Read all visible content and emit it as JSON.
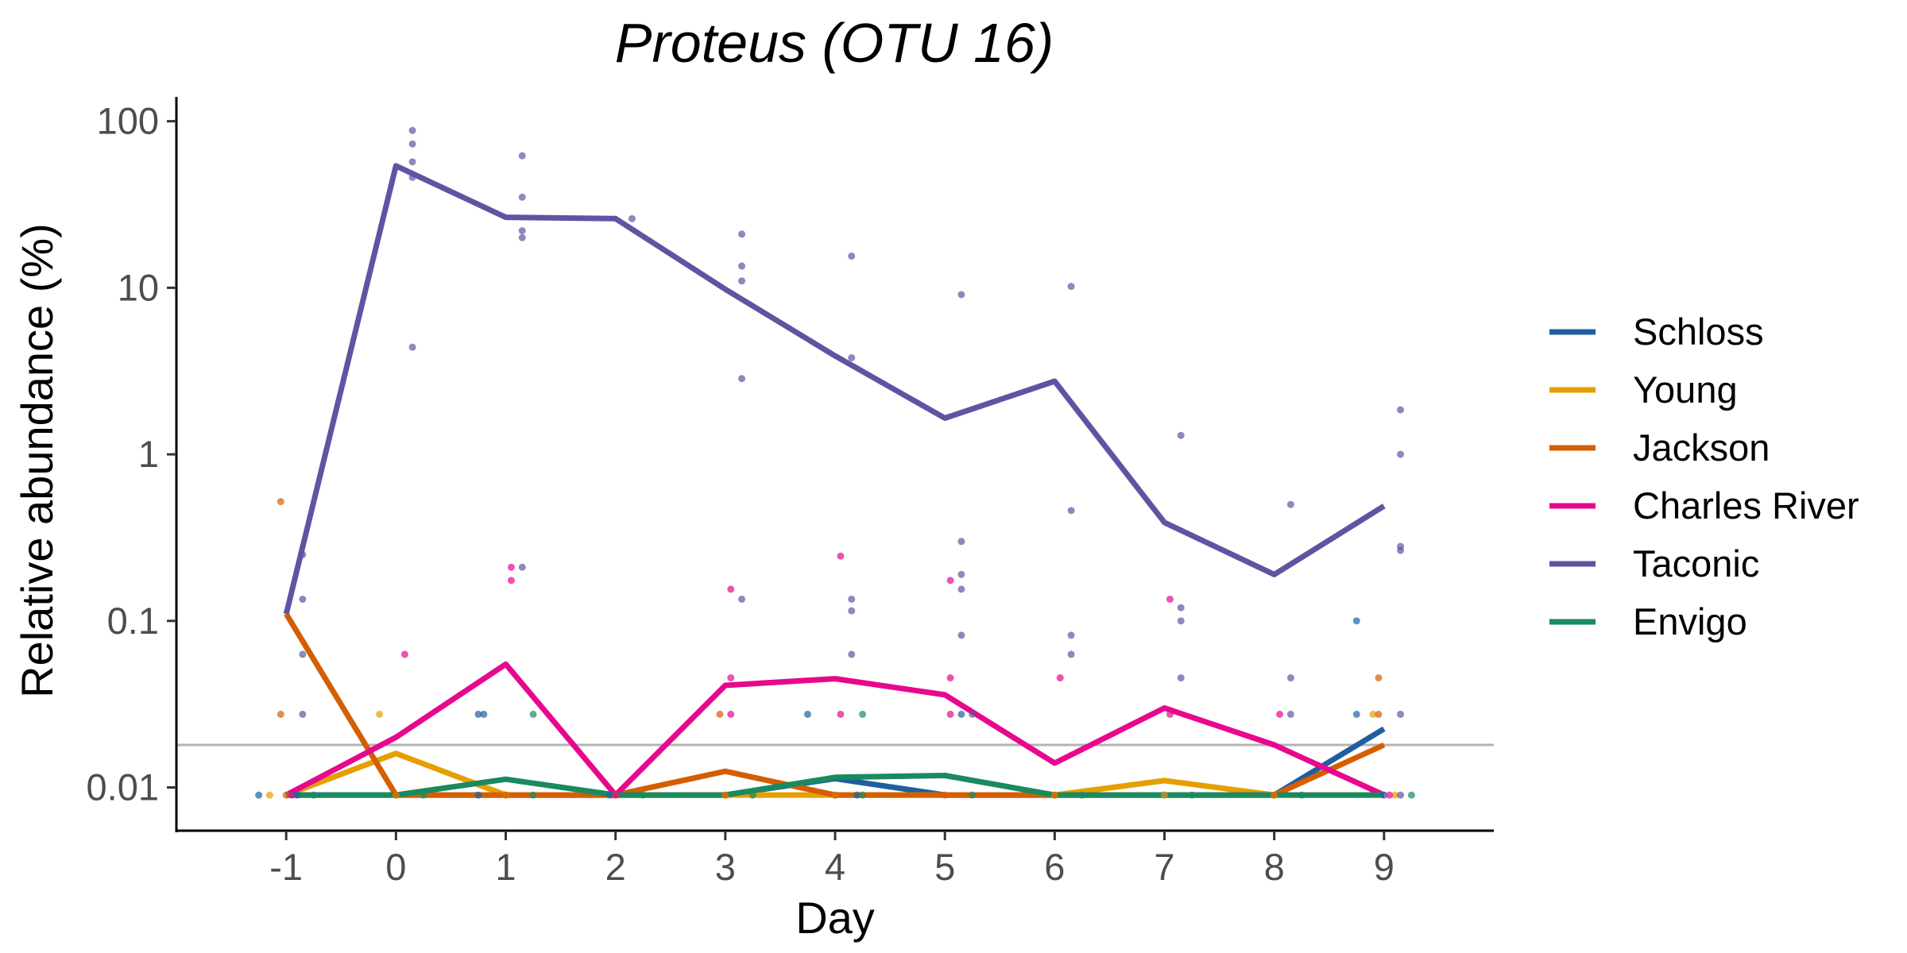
{
  "chart_data": {
    "type": "line",
    "title": "Proteus (OTU 16)",
    "xlabel": "Day",
    "ylabel": "Relative abundance (%)",
    "x": [
      -1,
      0,
      1,
      2,
      3,
      4,
      5,
      6,
      7,
      8,
      9
    ],
    "x_ticks": [
      "-1",
      "0",
      "1",
      "2",
      "3",
      "4",
      "5",
      "6",
      "7",
      "8",
      "9"
    ],
    "xlim": [
      -2,
      10
    ],
    "y_scale": "log",
    "y_ticks": [
      {
        "value": 0.01,
        "label": "0.01"
      },
      {
        "value": 0.1,
        "label": "0.1"
      },
      {
        "value": 1,
        "label": "1"
      },
      {
        "value": 10,
        "label": "10"
      },
      {
        "value": 100,
        "label": "100"
      }
    ],
    "ylim": [
      0.0055,
      140
    ],
    "limit_of_detection": 0.018,
    "grid": false,
    "legend_position": "right",
    "series": [
      {
        "name": "Schloss",
        "color": "#1f5fa0",
        "values": [
          0.009,
          0.009,
          0.009,
          0.009,
          0.009,
          0.0113,
          0.009,
          0.009,
          0.009,
          0.009,
          0.0225
        ],
        "points": [
          [
            -1.25,
            0.009
          ],
          [
            -0.9,
            0.009
          ],
          [
            0.75,
            0.009
          ],
          [
            0.75,
            0.0275
          ],
          [
            0.8,
            0.0275
          ],
          [
            1.95,
            0.009
          ],
          [
            3.75,
            0.0275
          ],
          [
            4.2,
            0.009
          ],
          [
            5.15,
            0.0275
          ],
          [
            7.0,
            0.009
          ],
          [
            8.75,
            0.1
          ],
          [
            8.75,
            0.0275
          ],
          [
            9.0,
            0.009
          ]
        ]
      },
      {
        "name": "Young",
        "color": "#e69f00",
        "values": [
          0.009,
          0.016,
          0.009,
          0.009,
          0.009,
          0.009,
          0.009,
          0.009,
          0.011,
          0.009,
          0.009
        ],
        "points": [
          [
            -1.15,
            0.009
          ],
          [
            -0.15,
            0.0275
          ],
          [
            0.0,
            0.009
          ],
          [
            1.0,
            0.009
          ],
          [
            3.0,
            0.009
          ],
          [
            4.0,
            0.009
          ],
          [
            6.0,
            0.009
          ],
          [
            7.0,
            0.009
          ],
          [
            8.0,
            0.009
          ],
          [
            8.9,
            0.0275
          ],
          [
            9.1,
            0.009
          ]
        ]
      },
      {
        "name": "Jackson",
        "color": "#d55e00",
        "values": [
          0.11,
          0.009,
          0.009,
          0.009,
          0.0125,
          0.009,
          0.009,
          0.009,
          0.009,
          0.009,
          0.018
        ],
        "points": [
          [
            -1.05,
            0.52
          ],
          [
            -1.05,
            0.0275
          ],
          [
            -1.0,
            0.009
          ],
          [
            0.0,
            0.009
          ],
          [
            1.0,
            0.009
          ],
          [
            2.0,
            0.009
          ],
          [
            2.95,
            0.0275
          ],
          [
            3.0,
            0.009
          ],
          [
            4.0,
            0.009
          ],
          [
            5.0,
            0.009
          ],
          [
            6.0,
            0.009
          ],
          [
            8.0,
            0.009
          ],
          [
            8.95,
            0.0455
          ],
          [
            8.95,
            0.0275
          ]
        ]
      },
      {
        "name": "Charles River",
        "color": "#e7088e",
        "values": [
          0.009,
          0.02,
          0.055,
          0.009,
          0.041,
          0.045,
          0.036,
          0.014,
          0.03,
          0.018,
          0.009
        ],
        "points": [
          [
            -0.95,
            0.009
          ],
          [
            0.08,
            0.063
          ],
          [
            1.05,
            0.21
          ],
          [
            1.05,
            0.175
          ],
          [
            2.0,
            0.009
          ],
          [
            3.05,
            0.155
          ],
          [
            3.05,
            0.0455
          ],
          [
            3.05,
            0.0275
          ],
          [
            4.05,
            0.245
          ],
          [
            4.05,
            0.0275
          ],
          [
            5.05,
            0.175
          ],
          [
            5.05,
            0.0455
          ],
          [
            5.05,
            0.0275
          ],
          [
            6.05,
            0.0455
          ],
          [
            7.05,
            0.135
          ],
          [
            7.05,
            0.0275
          ],
          [
            8.05,
            0.0275
          ],
          [
            9.05,
            0.009
          ]
        ]
      },
      {
        "name": "Taconic",
        "color": "#5e55a2",
        "values": [
          0.11,
          54,
          26.5,
          26,
          9.8,
          3.9,
          1.65,
          2.75,
          0.39,
          0.19,
          0.49
        ],
        "points": [
          [
            -0.85,
            0.25
          ],
          [
            -0.85,
            0.135
          ],
          [
            -0.85,
            0.063
          ],
          [
            -0.85,
            0.0275
          ],
          [
            0.15,
            88
          ],
          [
            0.15,
            73
          ],
          [
            0.15,
            57
          ],
          [
            0.15,
            46
          ],
          [
            0.15,
            4.4
          ],
          [
            1.15,
            62
          ],
          [
            1.15,
            35
          ],
          [
            1.15,
            22
          ],
          [
            1.15,
            20
          ],
          [
            1.15,
            0.21
          ],
          [
            2.15,
            26
          ],
          [
            3.15,
            21
          ],
          [
            3.15,
            13.5
          ],
          [
            3.15,
            11
          ],
          [
            3.15,
            2.85
          ],
          [
            3.15,
            0.135
          ],
          [
            4.15,
            15.5
          ],
          [
            4.15,
            3.8
          ],
          [
            4.15,
            0.135
          ],
          [
            4.15,
            0.115
          ],
          [
            4.15,
            0.063
          ],
          [
            5.15,
            9.1
          ],
          [
            5.15,
            0.3
          ],
          [
            5.15,
            0.19
          ],
          [
            5.15,
            0.155
          ],
          [
            5.15,
            0.082
          ],
          [
            5.25,
            0.0275
          ],
          [
            6.15,
            10.2
          ],
          [
            6.15,
            0.46
          ],
          [
            6.15,
            0.082
          ],
          [
            6.15,
            0.063
          ],
          [
            7.15,
            1.3
          ],
          [
            7.15,
            0.12
          ],
          [
            7.15,
            0.1
          ],
          [
            7.15,
            0.0455
          ],
          [
            8.15,
            0.5
          ],
          [
            8.15,
            0.0455
          ],
          [
            8.15,
            0.0275
          ],
          [
            9.15,
            1.85
          ],
          [
            9.15,
            1.0
          ],
          [
            9.15,
            0.28
          ],
          [
            9.15,
            0.265
          ],
          [
            9.15,
            0.0275
          ],
          [
            9.15,
            0.009
          ]
        ]
      },
      {
        "name": "Envigo",
        "color": "#1a8a5f",
        "values": [
          0.009,
          0.009,
          0.0112,
          0.009,
          0.009,
          0.0115,
          0.0118,
          0.009,
          0.009,
          0.009,
          0.009
        ],
        "points": [
          [
            -0.75,
            0.009
          ],
          [
            0.25,
            0.009
          ],
          [
            1.25,
            0.0275
          ],
          [
            1.25,
            0.009
          ],
          [
            2.25,
            0.009
          ],
          [
            3.25,
            0.009
          ],
          [
            4.25,
            0.0275
          ],
          [
            4.25,
            0.009
          ],
          [
            5.25,
            0.009
          ],
          [
            6.25,
            0.009
          ],
          [
            7.25,
            0.009
          ],
          [
            8.25,
            0.009
          ],
          [
            9.25,
            0.009
          ]
        ]
      }
    ]
  }
}
